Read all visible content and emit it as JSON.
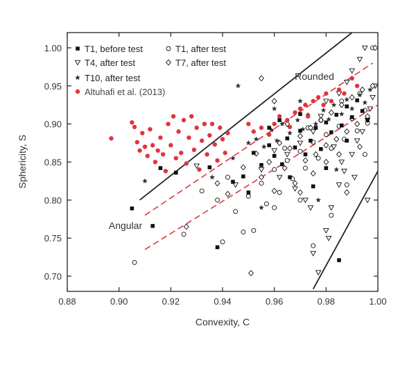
{
  "chart_data": {
    "type": "scatter",
    "title": "",
    "xlabel": "Convexity, C",
    "ylabel": "Sphericity, S",
    "xlim": [
      0.88,
      1.0
    ],
    "ylim": [
      0.68,
      1.02
    ],
    "x_ticks": [
      "0.88",
      "0.90",
      "0.92",
      "0.94",
      "0.96",
      "0.98",
      "1.00"
    ],
    "y_ticks": [
      "0.70",
      "0.75",
      "0.80",
      "0.85",
      "0.90",
      "0.95",
      "1.00"
    ],
    "grid": false,
    "legend_position": "top-left",
    "annotations": [
      {
        "text": "Rounded",
        "x": 0.9755,
        "y": 0.958
      },
      {
        "text": "Angular",
        "x": 0.9025,
        "y": 0.762
      }
    ],
    "boundary_lines": [
      {
        "style": "solid",
        "color": "#222222",
        "points": [
          [
            0.908,
            0.8
          ],
          [
            0.99,
            1.02
          ]
        ]
      },
      {
        "style": "solid",
        "color": "#222222",
        "points": [
          [
            0.975,
            0.683
          ],
          [
            1.0,
            0.838
          ]
        ]
      },
      {
        "style": "dashed",
        "color": "#e0343c",
        "points": [
          [
            0.91,
            0.78
          ],
          [
            0.998,
            0.98
          ]
        ]
      },
      {
        "style": "dashed",
        "color": "#e0343c",
        "points": [
          [
            0.91,
            0.735
          ],
          [
            1.0,
            0.925
          ]
        ]
      }
    ],
    "series": [
      {
        "name": "T1, before test",
        "marker": "filled-square",
        "color": "#111111",
        "points": [
          [
            0.905,
            0.789
          ],
          [
            0.913,
            0.766
          ],
          [
            0.916,
            0.842
          ],
          [
            0.922,
            0.836
          ],
          [
            0.935,
            0.843
          ],
          [
            0.938,
            0.738
          ],
          [
            0.944,
            0.824
          ],
          [
            0.948,
            0.831
          ],
          [
            0.952,
            0.862
          ],
          [
            0.955,
            0.846
          ],
          [
            0.958,
            0.872
          ],
          [
            0.96,
            0.858
          ],
          [
            0.963,
            0.847
          ],
          [
            0.965,
            0.881
          ],
          [
            0.968,
            0.869
          ],
          [
            0.97,
            0.891
          ],
          [
            0.972,
            0.86
          ],
          [
            0.974,
            0.878
          ],
          [
            0.976,
            0.895
          ],
          [
            0.978,
            0.867
          ],
          [
            0.98,
            0.902
          ],
          [
            0.982,
            0.889
          ],
          [
            0.984,
            0.912
          ],
          [
            0.986,
            0.898
          ],
          [
            0.988,
            0.923
          ],
          [
            0.99,
            0.909
          ],
          [
            0.992,
            0.931
          ],
          [
            0.985,
            0.721
          ],
          [
            0.95,
            0.81
          ],
          [
            0.966,
            0.83
          ],
          [
            0.975,
            0.818
          ],
          [
            0.98,
            0.842
          ],
          [
            0.988,
            0.878
          ],
          [
            0.994,
            0.917
          ],
          [
            0.996,
            0.905
          ],
          [
            0.958,
            0.895
          ],
          [
            0.962,
            0.905
          ],
          [
            0.97,
            0.913
          ]
        ]
      },
      {
        "name": "T1, after test",
        "marker": "open-circle",
        "color": "#111111",
        "points": [
          [
            0.906,
            0.718
          ],
          [
            0.925,
            0.755
          ],
          [
            0.932,
            0.812
          ],
          [
            0.938,
            0.8
          ],
          [
            0.94,
            0.745
          ],
          [
            0.942,
            0.83
          ],
          [
            0.945,
            0.785
          ],
          [
            0.948,
            0.758
          ],
          [
            0.95,
            0.805
          ],
          [
            0.952,
            0.76
          ],
          [
            0.955,
            0.822
          ],
          [
            0.957,
            0.795
          ],
          [
            0.96,
            0.84
          ],
          [
            0.962,
            0.81
          ],
          [
            0.965,
            0.852
          ],
          [
            0.967,
            0.828
          ],
          [
            0.97,
            0.864
          ],
          [
            0.972,
            0.842
          ],
          [
            0.975,
            0.876
          ],
          [
            0.977,
            0.855
          ],
          [
            0.98,
            0.886
          ],
          [
            0.982,
            0.868
          ],
          [
            0.985,
            0.897
          ],
          [
            0.987,
            0.88
          ],
          [
            0.99,
            0.907
          ],
          [
            0.992,
            0.891
          ],
          [
            0.995,
            0.918
          ],
          [
            0.996,
            0.901
          ],
          [
            0.998,
            1.0
          ],
          [
            0.96,
            0.79
          ],
          [
            0.97,
            0.8
          ],
          [
            0.975,
            0.74
          ],
          [
            0.982,
            0.78
          ],
          [
            0.988,
            0.82
          ],
          [
            0.995,
            0.86
          ],
          [
            0.964,
            0.868
          ],
          [
            0.973,
            0.895
          ],
          [
            0.978,
            0.905
          ],
          [
            0.986,
            0.93
          ],
          [
            0.993,
            0.94
          ]
        ]
      },
      {
        "name": "T4, after test",
        "marker": "open-triangle-down",
        "color": "#111111",
        "points": [
          [
            0.93,
            0.845
          ],
          [
            0.945,
            0.82
          ],
          [
            0.955,
            0.84
          ],
          [
            0.962,
            0.83
          ],
          [
            0.968,
            0.815
          ],
          [
            0.972,
            0.8
          ],
          [
            0.975,
            0.73
          ],
          [
            0.977,
            0.705
          ],
          [
            0.98,
            0.76
          ],
          [
            0.982,
            0.79
          ],
          [
            0.985,
            0.82
          ],
          [
            0.987,
            0.838
          ],
          [
            0.99,
            0.86
          ],
          [
            0.992,
            0.878
          ],
          [
            0.994,
            0.89
          ],
          [
            0.996,
            0.905
          ],
          [
            0.997,
            0.92
          ],
          [
            0.998,
            0.935
          ],
          [
            0.999,
            0.95
          ],
          [
            0.995,
            1.0
          ],
          [
            0.993,
            0.985
          ],
          [
            0.99,
            0.97
          ],
          [
            0.988,
            0.955
          ],
          [
            0.985,
            0.94
          ],
          [
            0.98,
            0.93
          ],
          [
            0.978,
            0.91
          ],
          [
            0.975,
            0.89
          ],
          [
            0.97,
            0.875
          ],
          [
            0.965,
            0.86
          ],
          [
            0.96,
            0.865
          ],
          [
            0.983,
            0.87
          ],
          [
            0.986,
            0.85
          ],
          [
            0.991,
            0.83
          ],
          [
            0.996,
            0.8
          ],
          [
            0.974,
            0.79
          ],
          [
            0.981,
            0.75
          ]
        ]
      },
      {
        "name": "T7, after test",
        "marker": "open-diamond",
        "color": "#111111",
        "points": [
          [
            0.926,
            0.765
          ],
          [
            0.938,
            0.822
          ],
          [
            0.942,
            0.808
          ],
          [
            0.948,
            0.843
          ],
          [
            0.951,
            0.704
          ],
          [
            0.953,
            0.861
          ],
          [
            0.955,
            0.83
          ],
          [
            0.958,
            0.85
          ],
          [
            0.96,
            0.812
          ],
          [
            0.962,
            0.875
          ],
          [
            0.964,
            0.842
          ],
          [
            0.966,
            0.868
          ],
          [
            0.968,
            0.822
          ],
          [
            0.97,
            0.884
          ],
          [
            0.972,
            0.852
          ],
          [
            0.974,
            0.895
          ],
          [
            0.976,
            0.86
          ],
          [
            0.978,
            0.905
          ],
          [
            0.98,
            0.872
          ],
          [
            0.982,
            0.915
          ],
          [
            0.984,
            0.88
          ],
          [
            0.986,
            0.925
          ],
          [
            0.988,
            0.89
          ],
          [
            0.99,
            0.935
          ],
          [
            0.992,
            0.9
          ],
          [
            0.994,
            0.945
          ],
          [
            0.996,
            0.91
          ],
          [
            0.998,
            0.95
          ],
          [
            0.999,
            1.0
          ],
          [
            0.955,
            0.96
          ],
          [
            0.96,
            0.93
          ],
          [
            0.965,
            0.9
          ],
          [
            0.97,
            0.81
          ],
          [
            0.975,
            0.835
          ],
          [
            0.98,
            0.85
          ],
          [
            0.985,
            0.86
          ],
          [
            0.988,
            0.81
          ],
          [
            0.993,
            0.87
          ]
        ]
      },
      {
        "name": "T10, after test",
        "marker": "star",
        "color": "#333333",
        "points": [
          [
            0.91,
            0.825
          ],
          [
            0.936,
            0.83
          ],
          [
            0.944,
            0.855
          ],
          [
            0.95,
            0.875
          ],
          [
            0.953,
            0.88
          ],
          [
            0.956,
            0.87
          ],
          [
            0.959,
            0.892
          ],
          [
            0.961,
            0.878
          ],
          [
            0.963,
            0.9
          ],
          [
            0.966,
            0.888
          ],
          [
            0.969,
            0.905
          ],
          [
            0.971,
            0.893
          ],
          [
            0.973,
            0.912
          ],
          [
            0.976,
            0.9
          ],
          [
            0.979,
            0.918
          ],
          [
            0.981,
            0.906
          ],
          [
            0.983,
            0.925
          ],
          [
            0.986,
            0.913
          ],
          [
            0.988,
            0.932
          ],
          [
            0.99,
            0.92
          ],
          [
            0.993,
            0.938
          ],
          [
            0.995,
            0.928
          ],
          [
            0.997,
            0.945
          ],
          [
            0.96,
            0.92
          ],
          [
            0.97,
            0.93
          ],
          [
            0.977,
            0.8
          ],
          [
            0.984,
            0.84
          ],
          [
            0.99,
            0.96
          ],
          [
            0.946,
            0.95
          ],
          [
            0.955,
            0.79
          ]
        ]
      },
      {
        "name": "Altuhafi et al. (2013)",
        "marker": "filled-circle",
        "color": "#e0343c",
        "points": [
          [
            0.897,
            0.881
          ],
          [
            0.905,
            0.902
          ],
          [
            0.906,
            0.896
          ],
          [
            0.907,
            0.876
          ],
          [
            0.908,
            0.865
          ],
          [
            0.909,
            0.888
          ],
          [
            0.91,
            0.87
          ],
          [
            0.911,
            0.858
          ],
          [
            0.912,
            0.893
          ],
          [
            0.913,
            0.872
          ],
          [
            0.914,
            0.85
          ],
          [
            0.915,
            0.865
          ],
          [
            0.916,
            0.882
          ],
          [
            0.917,
            0.86
          ],
          [
            0.918,
            0.838
          ],
          [
            0.919,
            0.9
          ],
          [
            0.92,
            0.872
          ],
          [
            0.921,
            0.91
          ],
          [
            0.922,
            0.855
          ],
          [
            0.923,
            0.89
          ],
          [
            0.924,
            0.862
          ],
          [
            0.925,
            0.905
          ],
          [
            0.926,
            0.848
          ],
          [
            0.927,
            0.882
          ],
          [
            0.928,
            0.91
          ],
          [
            0.929,
            0.866
          ],
          [
            0.93,
            0.895
          ],
          [
            0.931,
            0.84
          ],
          [
            0.932,
            0.878
          ],
          [
            0.933,
            0.9
          ],
          [
            0.934,
            0.86
          ],
          [
            0.935,
            0.885
          ],
          [
            0.936,
            0.9
          ],
          [
            0.937,
            0.873
          ],
          [
            0.938,
            0.852
          ],
          [
            0.939,
            0.895
          ],
          [
            0.94,
            0.88
          ],
          [
            0.941,
            0.862
          ],
          [
            0.942,
            0.888
          ],
          [
            0.95,
            0.9
          ],
          [
            0.952,
            0.89
          ],
          [
            0.955,
            0.895
          ],
          [
            0.958,
            0.886
          ],
          [
            0.96,
            0.9
          ],
          [
            0.962,
            0.91
          ],
          [
            0.965,
            0.905
          ],
          [
            0.968,
            0.915
          ],
          [
            0.97,
            0.92
          ],
          [
            0.972,
            0.925
          ],
          [
            0.975,
            0.93
          ],
          [
            0.977,
            0.935
          ],
          [
            0.98,
            0.94
          ],
          [
            0.982,
            0.93
          ],
          [
            0.985,
            0.945
          ],
          [
            0.987,
            0.94
          ],
          [
            0.99,
            0.96
          ],
          [
            0.992,
            0.95
          ],
          [
            0.979,
            0.925
          ],
          [
            0.973,
            0.91
          ],
          [
            0.966,
            0.896
          ]
        ]
      }
    ]
  }
}
